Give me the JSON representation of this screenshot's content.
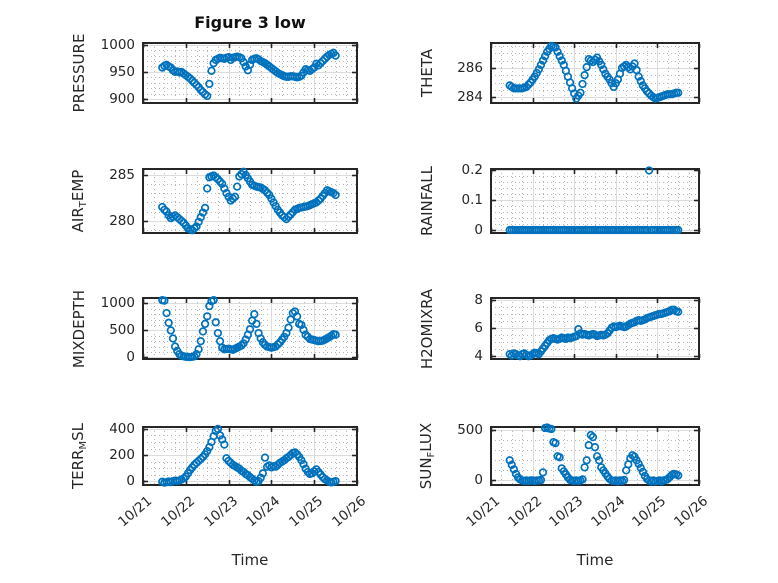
{
  "title": "Figure 3 low",
  "xlabel": "Time",
  "colors": {
    "marker": "#0072BD",
    "axis": "#262626",
    "grid_major": "#dcdcdc",
    "grid_minor": "#b5b5b5",
    "background": "#ffffff",
    "text": "#262626"
  },
  "time_axis": {
    "units": "day of October",
    "t0": 21.45,
    "dt": 0.05,
    "n": 82,
    "xlim": [
      21,
      26
    ],
    "xtick_days": [
      21,
      22,
      23,
      24,
      25,
      26
    ],
    "xtick_labels": [
      "10/21",
      "10/22",
      "10/23",
      "10/24",
      "10/25",
      "10/26"
    ]
  },
  "chart_data": [
    {
      "name": "pressure",
      "type": "scatter",
      "row": 0,
      "col": 0,
      "ylabel_parts": [
        {
          "text": "PRESSURE",
          "sub": false
        }
      ],
      "ylim": [
        893,
        1003
      ],
      "yticks": [
        900,
        950,
        1000
      ],
      "yminor": 10,
      "values": [
        958,
        961,
        963,
        960,
        958,
        953,
        950,
        951,
        949,
        950,
        947,
        944,
        941,
        938,
        934,
        930,
        926,
        922,
        917,
        913,
        909,
        906,
        928,
        952,
        966,
        972,
        974,
        976,
        975,
        974,
        976,
        977,
        972,
        976,
        977,
        978,
        977,
        975,
        968,
        960,
        953,
        963,
        972,
        974,
        975,
        973,
        970,
        968,
        966,
        963,
        960,
        957,
        954,
        951,
        948,
        946,
        944,
        942,
        941,
        941,
        942,
        942,
        941,
        940,
        941,
        943,
        949,
        955,
        953,
        952,
        955,
        958,
        965,
        962,
        966,
        970,
        974,
        978,
        981,
        983,
        985,
        980
      ]
    },
    {
      "name": "theta",
      "type": "scatter",
      "row": 0,
      "col": 1,
      "ylabel_parts": [
        {
          "text": "THETA",
          "sub": false
        }
      ],
      "ylim": [
        283.6,
        287.7
      ],
      "yticks": [
        284,
        286
      ],
      "yminor": 0.5,
      "values": [
        284.8,
        284.7,
        284.6,
        284.6,
        284.6,
        284.6,
        284.6,
        284.65,
        284.7,
        284.85,
        285.0,
        285.2,
        285.4,
        285.65,
        285.9,
        286.2,
        286.5,
        286.8,
        287.1,
        287.3,
        287.5,
        287.45,
        287.4,
        287.1,
        286.8,
        286.5,
        286.2,
        285.8,
        285.4,
        285.0,
        284.6,
        284.25,
        283.9,
        284.1,
        284.3,
        284.9,
        285.5,
        286.05,
        286.6,
        286.5,
        286.4,
        286.55,
        286.7,
        286.45,
        286.2,
        285.9,
        285.6,
        285.4,
        285.2,
        284.95,
        284.7,
        284.95,
        285.2,
        285.6,
        286.0,
        286.1,
        286.2,
        286.05,
        285.9,
        286.1,
        286.3,
        285.85,
        285.4,
        285.1,
        284.8,
        284.6,
        284.4,
        284.25,
        284.1,
        284.0,
        283.9,
        283.95,
        284.0,
        284.05,
        284.1,
        284.15,
        284.2,
        284.2,
        284.2,
        284.25,
        284.3,
        284.3
      ]
    },
    {
      "name": "air-temp",
      "type": "scatter",
      "row": 1,
      "col": 0,
      "ylabel_parts": [
        {
          "text": "AIR",
          "sub": false
        },
        {
          "text": "T",
          "sub": true
        },
        {
          "text": "EMP",
          "sub": false
        }
      ],
      "ylim": [
        278.7,
        285.6
      ],
      "yticks": [
        280,
        285
      ],
      "yminor": 1,
      "values": [
        281.5,
        281.2,
        281.0,
        280.6,
        280.3,
        280.45,
        280.6,
        280.4,
        280.2,
        280.0,
        279.8,
        279.5,
        279.2,
        279.1,
        279.0,
        279.2,
        279.4,
        279.9,
        280.4,
        280.9,
        281.4,
        283.5,
        284.7,
        284.8,
        284.9,
        284.7,
        284.5,
        284.25,
        284.0,
        283.5,
        283.0,
        282.6,
        282.2,
        282.4,
        282.6,
        283.7,
        284.8,
        285.05,
        285.3,
        284.95,
        284.6,
        284.25,
        283.9,
        283.8,
        283.7,
        283.65,
        283.6,
        283.45,
        283.3,
        283.05,
        282.8,
        282.4,
        282.0,
        281.6,
        281.2,
        280.9,
        280.6,
        280.4,
        280.2,
        280.45,
        280.7,
        280.95,
        281.2,
        281.3,
        281.4,
        281.45,
        281.5,
        281.55,
        281.6,
        281.7,
        281.8,
        281.9,
        282.0,
        282.2,
        282.4,
        282.7,
        283.0,
        283.3,
        283.2,
        283.1,
        283.0,
        282.8
      ]
    },
    {
      "name": "rainfall",
      "type": "scatter",
      "row": 1,
      "col": 1,
      "ylabel_parts": [
        {
          "text": "RAINFALL",
          "sub": false
        }
      ],
      "ylim": [
        -0.01,
        0.205
      ],
      "yticks": [
        0,
        0.1,
        0.2
      ],
      "yminor": 0.02,
      "values": [
        0,
        0,
        0,
        0,
        0,
        0,
        0,
        0,
        0,
        0,
        0,
        0,
        0,
        0,
        0,
        0,
        0,
        0,
        0,
        0,
        0,
        0,
        0,
        0,
        0,
        0,
        0,
        0,
        0,
        0,
        0,
        0,
        0,
        0,
        0,
        0,
        0,
        0,
        0,
        0,
        0,
        0,
        0,
        0,
        0,
        0,
        0,
        0,
        0,
        0,
        0,
        0,
        0,
        0,
        0,
        0,
        0,
        0,
        0,
        0,
        0,
        0,
        0,
        0,
        0,
        0,
        0,
        0.2,
        0,
        0,
        0,
        0,
        0,
        0,
        0,
        0,
        0,
        0,
        0,
        0,
        0,
        0
      ]
    },
    {
      "name": "mixdepth",
      "type": "scatter",
      "row": 2,
      "col": 0,
      "ylabel_parts": [
        {
          "text": "MIXDEPTH",
          "sub": false
        }
      ],
      "ylim": [
        -30,
        1100
      ],
      "yticks": [
        0,
        500,
        1000
      ],
      "yminor": 100,
      "values": [
        1060,
        1050,
        820,
        640,
        500,
        350,
        200,
        120,
        60,
        30,
        20,
        10,
        8,
        5,
        10,
        20,
        60,
        150,
        300,
        480,
        620,
        760,
        950,
        1040,
        1060,
        650,
        450,
        300,
        180,
        150,
        155,
        160,
        150,
        140,
        160,
        180,
        200,
        220,
        260,
        330,
        420,
        520,
        680,
        800,
        620,
        450,
        350,
        280,
        230,
        200,
        190,
        180,
        190,
        200,
        240,
        280,
        330,
        380,
        450,
        550,
        700,
        820,
        850,
        760,
        620,
        600,
        510,
        420,
        380,
        340,
        330,
        320,
        310,
        300,
        305,
        310,
        330,
        350,
        375,
        400,
        430,
        420
      ]
    },
    {
      "name": "h2omixra",
      "type": "scatter",
      "row": 2,
      "col": 1,
      "ylabel_parts": [
        {
          "text": "H2OMIXRA",
          "sub": false
        }
      ],
      "ylim": [
        3.75,
        8.15
      ],
      "yticks": [
        4,
        6,
        8
      ],
      "yminor": 0.5,
      "values": [
        4.1,
        4.0,
        4.15,
        4.1,
        4.0,
        3.95,
        4.1,
        4.15,
        4.05,
        3.95,
        4.0,
        4.1,
        4.2,
        4.15,
        4.1,
        4.3,
        4.5,
        4.7,
        4.9,
        5.1,
        5.2,
        5.25,
        5.2,
        5.15,
        5.2,
        5.3,
        5.25,
        5.2,
        5.3,
        5.25,
        5.3,
        5.35,
        5.4,
        5.9,
        5.6,
        5.5,
        5.55,
        5.5,
        5.45,
        5.5,
        5.55,
        5.5,
        5.4,
        5.45,
        5.5,
        5.45,
        5.5,
        5.6,
        5.8,
        6.0,
        6.1,
        6.05,
        6.1,
        6.15,
        6.1,
        6.05,
        6.1,
        6.2,
        6.3,
        6.35,
        6.4,
        6.5,
        6.55,
        6.5,
        6.55,
        6.6,
        6.7,
        6.75,
        6.8,
        6.85,
        6.9,
        6.95,
        7.0,
        7.0,
        7.05,
        7.1,
        7.15,
        7.2,
        7.3,
        7.3,
        7.2,
        7.15
      ]
    },
    {
      "name": "terr-msl",
      "type": "scatter",
      "row": 3,
      "col": 0,
      "ylabel_parts": [
        {
          "text": "TERR",
          "sub": false
        },
        {
          "text": "M",
          "sub": true
        },
        {
          "text": "SL",
          "sub": false
        }
      ],
      "ylim": [
        -30,
        415
      ],
      "yticks": [
        0,
        200,
        400
      ],
      "yminor": 50,
      "values": [
        -5,
        -12,
        -8,
        -3,
        -8,
        0,
        3,
        0,
        5,
        12,
        20,
        35,
        60,
        85,
        105,
        125,
        140,
        155,
        170,
        185,
        205,
        230,
        260,
        300,
        345,
        385,
        400,
        350,
        320,
        280,
        175,
        155,
        140,
        125,
        115,
        105,
        95,
        80,
        70,
        55,
        45,
        30,
        18,
        5,
        -5,
        0,
        25,
        60,
        180,
        110,
        120,
        105,
        115,
        110,
        125,
        140,
        150,
        160,
        175,
        185,
        200,
        215,
        220,
        205,
        185,
        160,
        130,
        95,
        70,
        55,
        60,
        75,
        90,
        70,
        50,
        30,
        15,
        5,
        -5,
        -10,
        -5,
        0
      ]
    },
    {
      "name": "sun-flux",
      "type": "scatter",
      "row": 3,
      "col": 1,
      "ylabel_parts": [
        {
          "text": "SUN",
          "sub": false
        },
        {
          "text": "F",
          "sub": true
        },
        {
          "text": "LUX",
          "sub": false
        }
      ],
      "ylim": [
        -45,
        530
      ],
      "yticks": [
        0,
        500
      ],
      "yminor": 100,
      "values": [
        200,
        155,
        110,
        65,
        30,
        10,
        0,
        -5,
        0,
        -5,
        0,
        0,
        -5,
        0,
        0,
        5,
        80,
        520,
        525,
        515,
        510,
        380,
        370,
        240,
        230,
        120,
        90,
        60,
        30,
        5,
        0,
        -5,
        0,
        -5,
        0,
        10,
        130,
        200,
        350,
        450,
        430,
        330,
        240,
        200,
        130,
        100,
        70,
        40,
        15,
        0,
        -5,
        0,
        -10,
        0,
        -5,
        5,
        100,
        160,
        220,
        250,
        235,
        200,
        165,
        125,
        85,
        45,
        15,
        0,
        -10,
        0,
        -10,
        -5,
        0,
        -10,
        0,
        5,
        15,
        35,
        55,
        65,
        60,
        50
      ]
    }
  ]
}
